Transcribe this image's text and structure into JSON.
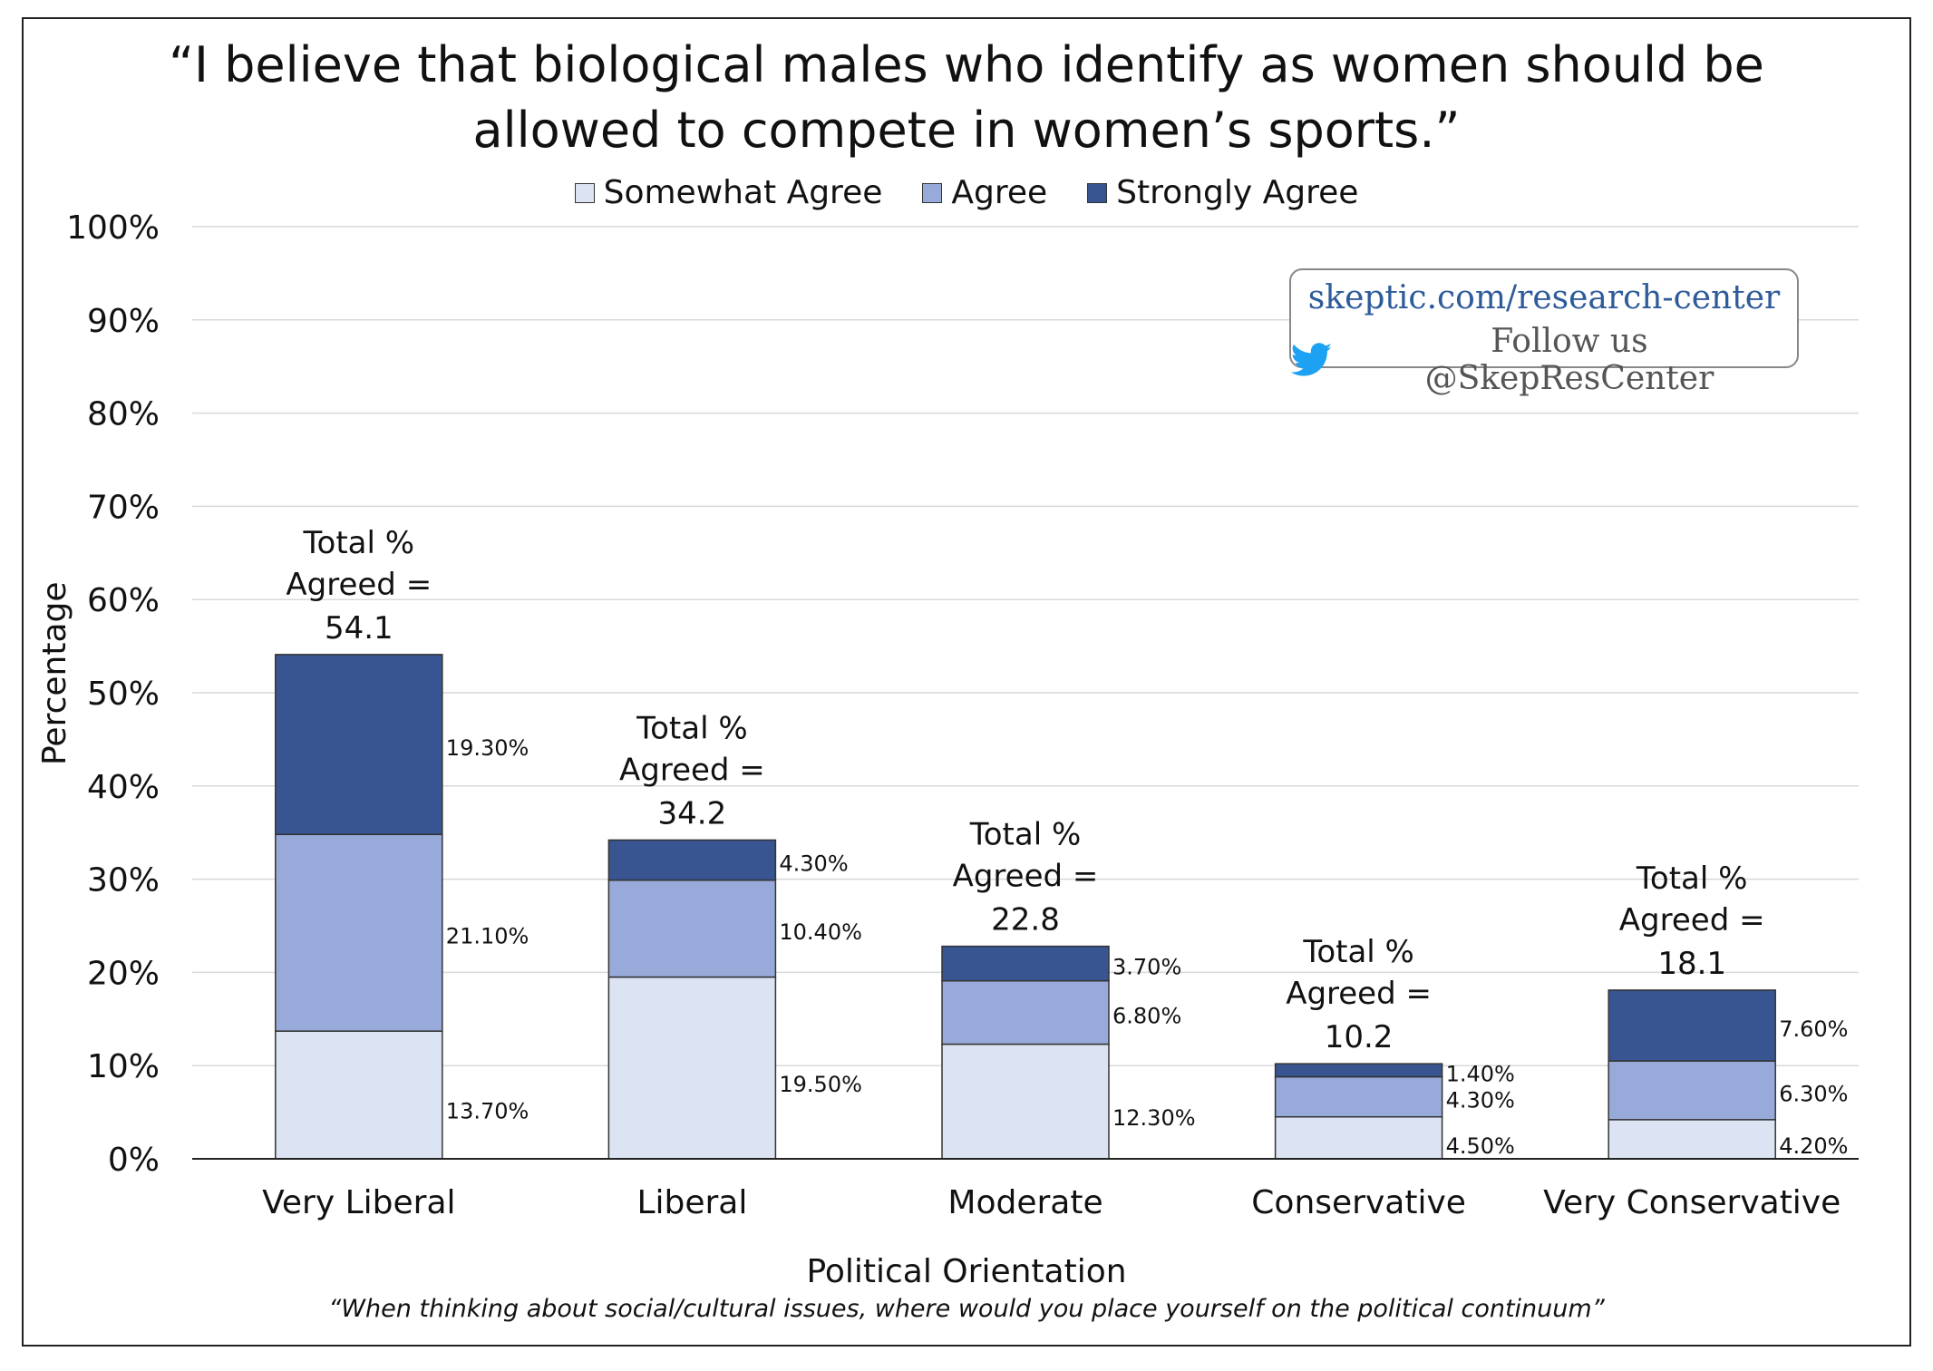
{
  "chart_data": {
    "type": "bar",
    "stacked": true,
    "title": "“I believe that biological males who identify as women should be allowed to compete in women’s sports.”",
    "title_lines": [
      "“I believe that biological males who identify as women should be",
      "allowed to compete in women’s sports.”"
    ],
    "xlabel": "Political Orientation",
    "xnote": "“When thinking about social/cultural issues, where would you place yourself on the political continuum”",
    "ylabel": "Percentage",
    "ylim": [
      0,
      100
    ],
    "yticks": [
      0,
      10,
      20,
      30,
      40,
      50,
      60,
      70,
      80,
      90,
      100
    ],
    "ytick_labels": [
      "0%",
      "10%",
      "20%",
      "30%",
      "40%",
      "50%",
      "60%",
      "70%",
      "80%",
      "90%",
      "100%"
    ],
    "grid": true,
    "legend_position": "top-center",
    "categories": [
      "Very Liberal",
      "Liberal",
      "Moderate",
      "Conservative",
      "Very Conservative"
    ],
    "series": [
      {
        "name": "Somewhat Agree",
        "color": "#dce3f2",
        "values": [
          13.7,
          19.5,
          12.3,
          4.5,
          4.2
        ],
        "labels": [
          "13.70%",
          "19.50%",
          "12.30%",
          "4.50%",
          "4.20%"
        ]
      },
      {
        "name": "Agree",
        "color": "#97aad9",
        "values": [
          21.1,
          10.4,
          6.8,
          4.3,
          6.3
        ],
        "labels": [
          "21.10%",
          "10.40%",
          "6.80%",
          "4.30%",
          "6.30%"
        ]
      },
      {
        "name": "Strongly Agree",
        "color": "#385591",
        "values": [
          19.3,
          4.3,
          3.7,
          1.4,
          7.6
        ],
        "labels": [
          "19.30%",
          "4.30%",
          "3.70%",
          "1.40%",
          "7.60%"
        ]
      }
    ],
    "totals": [
      54.1,
      34.2,
      22.8,
      10.2,
      18.1
    ],
    "total_label_lines": [
      "Total %",
      "Agreed ="
    ],
    "total_labels": [
      "54.1",
      "34.2",
      "22.8",
      "10.2",
      "18.1"
    ]
  },
  "badge": {
    "url": "skeptic.com/research-center",
    "follow": "Follow us @SkepResCenter",
    "icon": "twitter-bird-icon"
  }
}
